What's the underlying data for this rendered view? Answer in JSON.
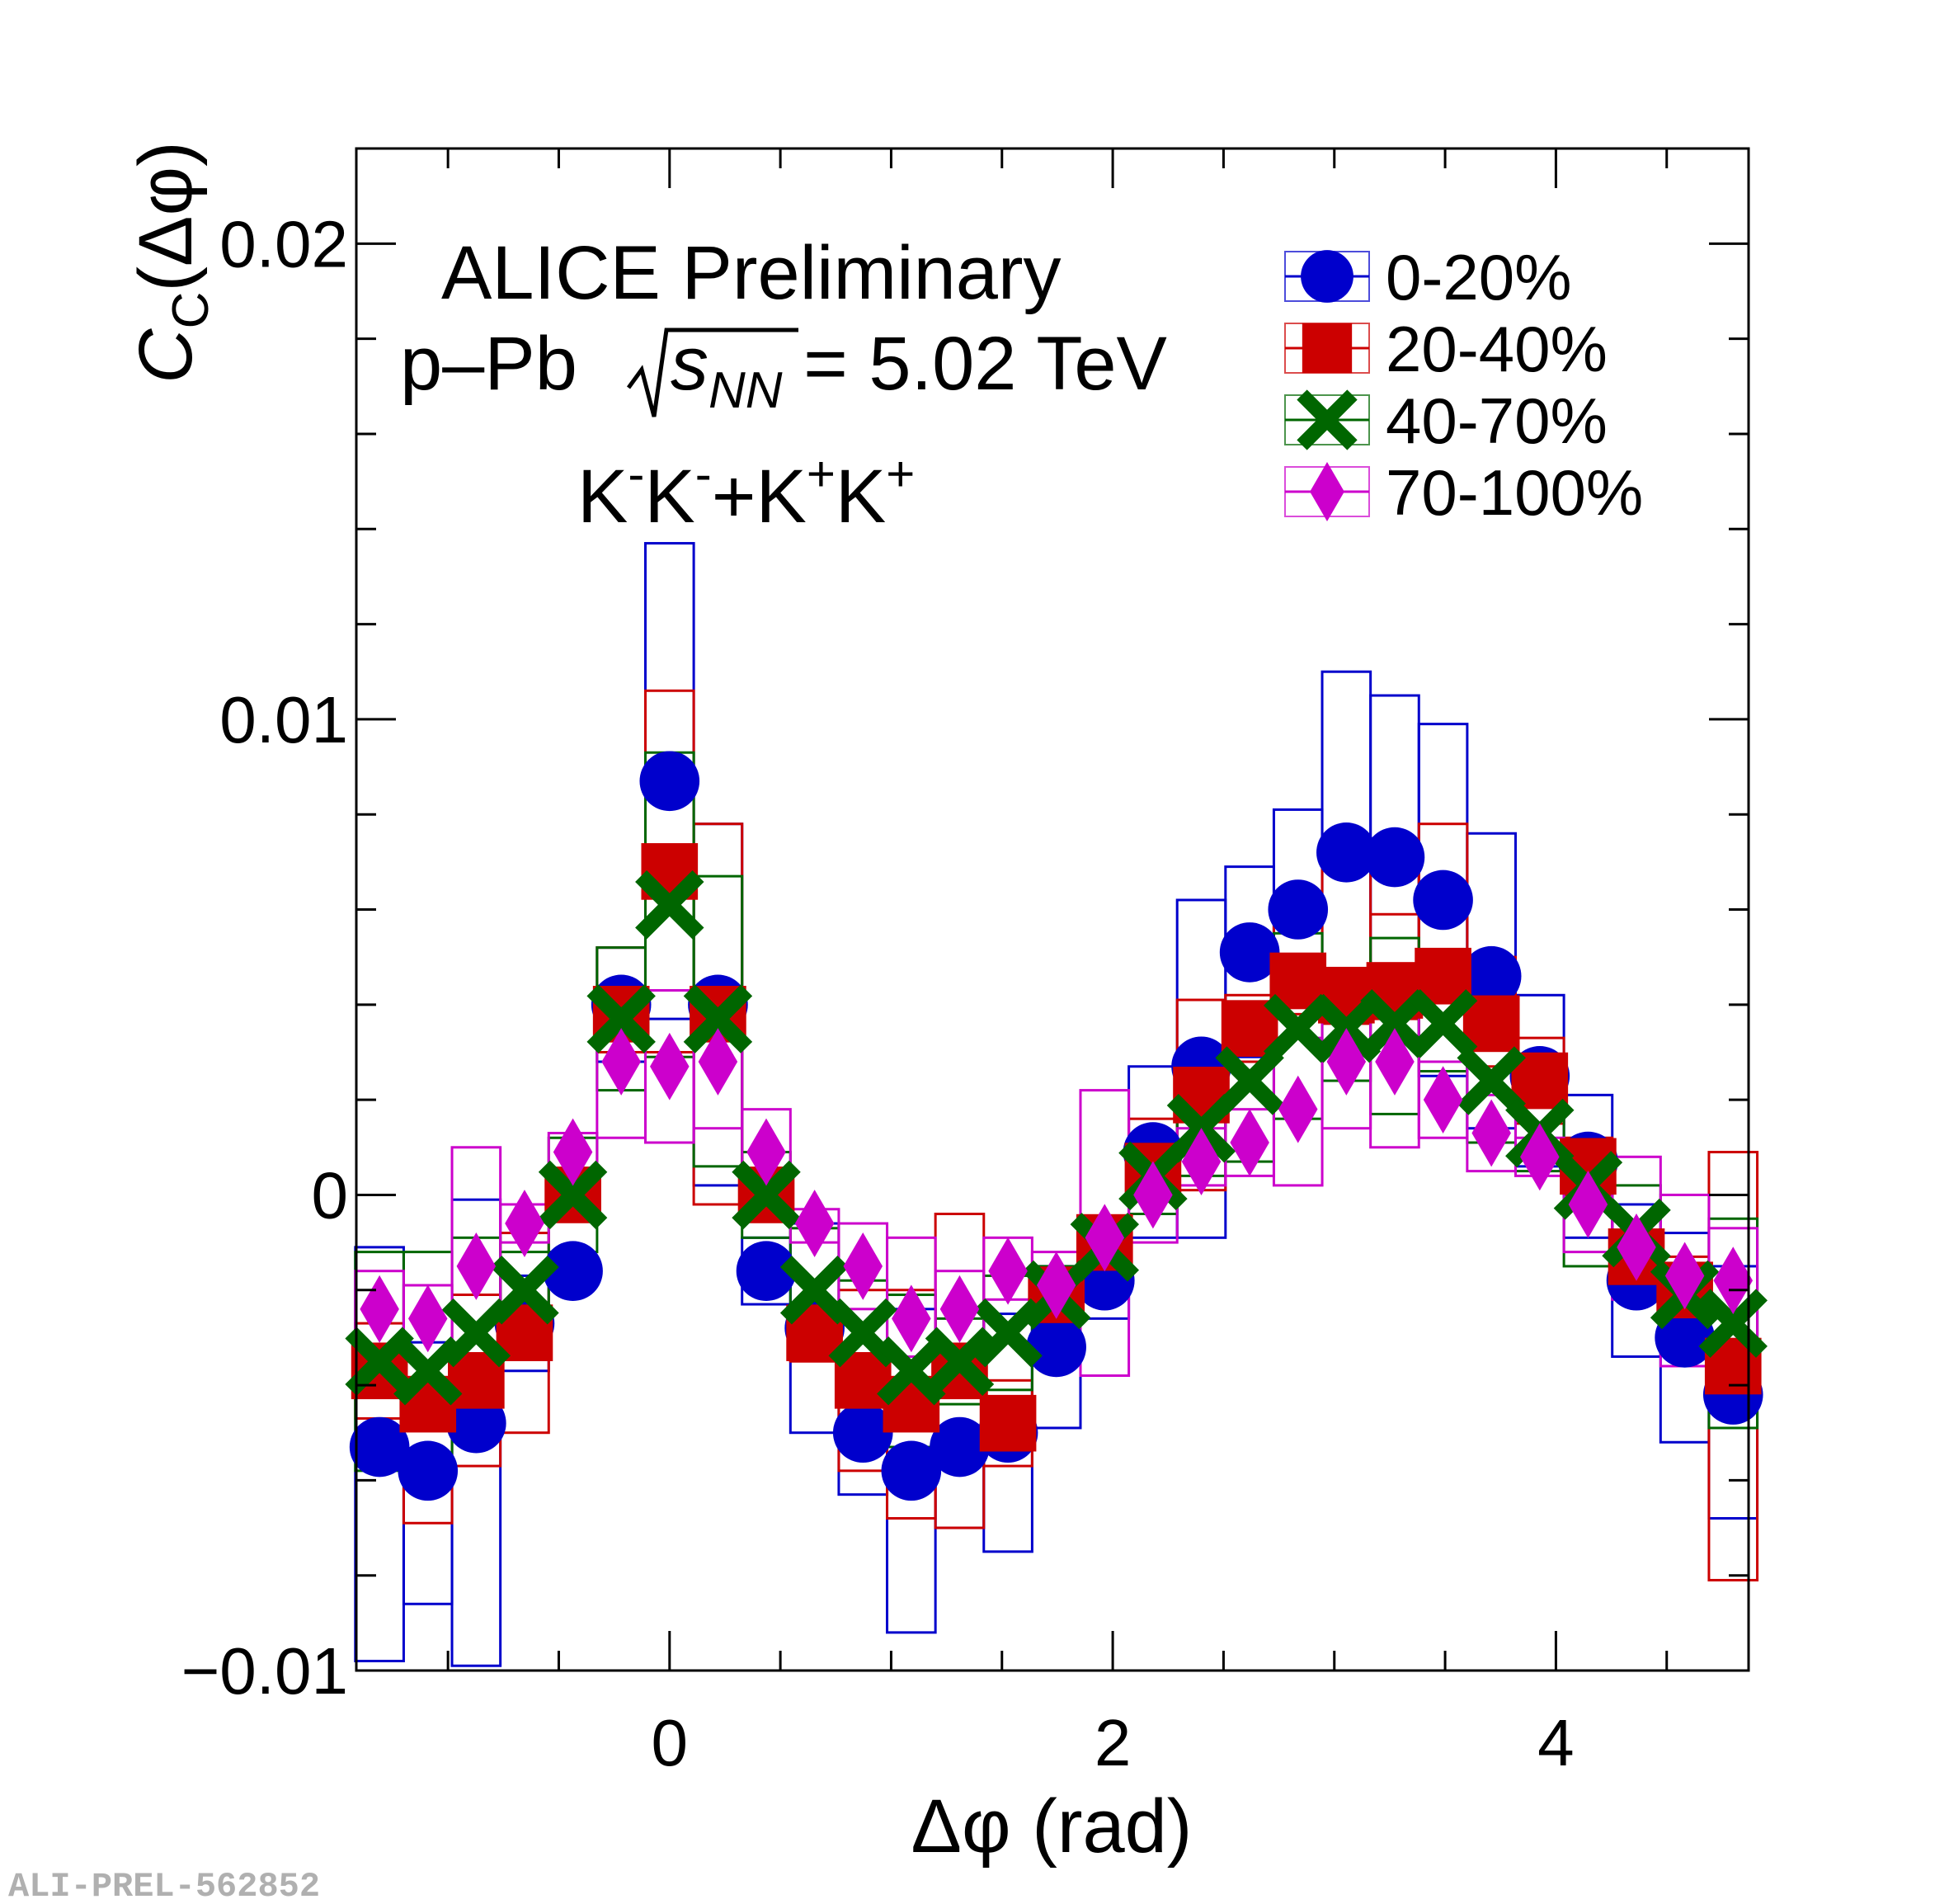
{
  "chart_data": {
    "type": "scatter",
    "title": "ALICE Preliminary",
    "subtitle": "p–Pb √sNN = 5.02 TeV",
    "system_label": {
      "base": "K",
      "sup1": "-",
      "mid": "K",
      "sup2": "-",
      "plus": "+K",
      "sup3": "+",
      "end": "K",
      "sup4": "+"
    },
    "energy_label": {
      "prefix": "p–Pb ",
      "s": "s",
      "sub": "NN",
      "suffix": " = 5.02 TeV"
    },
    "xlabel": "Δφ (rad)",
    "ylabel": {
      "main": "C",
      "sub": "C",
      "rest": "(Δφ)"
    },
    "xlim": [
      -1.4137,
      4.8695
    ],
    "ylim": [
      -0.01,
      0.022
    ],
    "x_ticks": [
      {
        "value": 0,
        "label": "0"
      },
      {
        "value": 2,
        "label": "2"
      },
      {
        "value": 4,
        "label": "4"
      }
    ],
    "y_ticks": [
      {
        "value": -0.01,
        "label": "−0.01"
      },
      {
        "value": 0,
        "label": "0"
      },
      {
        "value": 0.01,
        "label": "0.01"
      },
      {
        "value": 0.02,
        "label": "0.02"
      }
    ],
    "x": [
      -1.309,
      -1.0908,
      -0.8727,
      -0.6545,
      -0.4363,
      -0.2182,
      0.0,
      0.2182,
      0.4363,
      0.6545,
      0.8727,
      1.0908,
      1.309,
      1.5272,
      1.7453,
      1.9635,
      2.1817,
      2.3998,
      2.618,
      2.8362,
      3.0543,
      3.2725,
      3.4907,
      3.7088,
      3.927,
      4.1452,
      4.3633,
      4.5815,
      4.7997
    ],
    "bin_half_width": 0.1091,
    "legend_position": "top-right",
    "grid": false,
    "series": [
      {
        "name": "0-20%",
        "color": "#0000cc",
        "marker": "circle",
        "values": [
          -0.0053,
          -0.0058,
          -0.0048,
          -0.0027,
          -0.0016,
          0.004,
          0.0087,
          0.004,
          -0.0016,
          -0.0028,
          -0.005,
          -0.0058,
          -0.0053,
          -0.005,
          -0.0032,
          -0.0018,
          0.0009,
          0.0027,
          0.0051,
          0.006,
          0.0072,
          0.0071,
          0.0062,
          0.0046,
          0.0025,
          0.0007,
          -0.0018,
          -0.003,
          -0.0042
        ],
        "sys_low": [
          -0.0098,
          -0.0086,
          -0.0099,
          -0.0037,
          -0.0018,
          0.0028,
          0.0037,
          0.0002,
          -0.0023,
          -0.005,
          -0.0063,
          -0.0092,
          -0.007,
          -0.0075,
          -0.0049,
          -0.0026,
          -0.0009,
          -0.0009,
          0.0029,
          0.0037,
          0.004,
          0.0038,
          0.0025,
          0.0014,
          0.0006,
          -0.0009,
          -0.0034,
          -0.0052,
          -0.0068
        ],
        "sys_high": [
          -0.0011,
          -0.0031,
          -0.0001,
          -0.0017,
          -0.0014,
          0.0052,
          0.0137,
          0.0078,
          -0.0009,
          -0.0006,
          -0.0037,
          -0.0024,
          -0.0036,
          -0.0025,
          -0.0015,
          -0.001,
          0.0027,
          0.0062,
          0.0069,
          0.0081,
          0.011,
          0.0105,
          0.0099,
          0.0076,
          0.0042,
          0.0021,
          -0.0002,
          -0.0008,
          -0.0015
        ]
      },
      {
        "name": "20-40%",
        "color": "#cc0000",
        "marker": "square",
        "values": [
          -0.0037,
          -0.0044,
          -0.0039,
          -0.0029,
          0.0,
          0.0038,
          0.0068,
          0.0038,
          0.0,
          -0.0029,
          -0.0039,
          -0.0044,
          -0.0037,
          -0.0048,
          -0.0021,
          -0.001,
          0.0005,
          0.0021,
          0.0035,
          0.0045,
          0.0042,
          0.0043,
          0.0046,
          0.0036,
          0.0024,
          0.0006,
          -0.0013,
          -0.002,
          -0.0036
        ],
        "sys_low": [
          -0.0047,
          -0.0069,
          -0.0057,
          -0.005,
          -0.0004,
          0.003,
          0.003,
          -0.0002,
          -0.0004,
          -0.0035,
          -0.0058,
          -0.0068,
          -0.007,
          -0.0057,
          -0.0026,
          -0.0014,
          0.0,
          0.0001,
          0.0028,
          0.0038,
          0.0036,
          0.0037,
          0.0038,
          0.0027,
          0.0015,
          0.0,
          -0.0018,
          -0.0027,
          -0.0081
        ],
        "sys_high": [
          -0.0027,
          -0.0019,
          -0.0021,
          -0.0008,
          0.0004,
          0.0052,
          0.0106,
          0.0078,
          0.0004,
          -0.0023,
          -0.002,
          -0.002,
          -0.0004,
          -0.0039,
          -0.0016,
          -0.0006,
          0.0016,
          0.0041,
          0.0042,
          0.0059,
          0.0071,
          0.0059,
          0.0078,
          0.005,
          0.0033,
          0.0012,
          -0.0008,
          -0.0013,
          0.0009
        ]
      },
      {
        "name": "40-70%",
        "color": "#006600",
        "marker": "cross",
        "values": [
          -0.0035,
          -0.0037,
          -0.0029,
          -0.002,
          0.0,
          0.0037,
          0.0061,
          0.0037,
          0.0,
          -0.002,
          -0.0029,
          -0.0037,
          -0.0035,
          -0.0029,
          -0.0021,
          -0.0011,
          0.0004,
          0.0014,
          0.0024,
          0.0035,
          0.0035,
          0.0036,
          0.0036,
          0.0024,
          0.0013,
          0.0002,
          -0.0008,
          -0.0021,
          -0.0027
        ],
        "sys_low": [
          -0.0058,
          -0.0061,
          -0.0049,
          -0.0028,
          -0.0012,
          0.0022,
          0.0029,
          0.0006,
          -0.0009,
          -0.0033,
          -0.004,
          -0.0053,
          -0.0044,
          -0.0041,
          -0.0027,
          -0.0016,
          -0.0004,
          0.0004,
          0.0007,
          0.0016,
          0.0024,
          0.0017,
          0.0026,
          0.0011,
          0.0005,
          -0.0015,
          -0.0018,
          -0.0024,
          -0.0049
        ],
        "sys_high": [
          -0.0012,
          -0.0012,
          -0.0009,
          -0.0012,
          0.0012,
          0.0052,
          0.0093,
          0.0067,
          0.0009,
          -0.0007,
          -0.0018,
          -0.0021,
          -0.0026,
          -0.0017,
          -0.0015,
          -0.0006,
          0.0012,
          0.0024,
          0.004,
          0.0055,
          0.0046,
          0.0054,
          0.0046,
          0.0038,
          0.0021,
          0.0009,
          0.0002,
          -0.0018,
          -0.0005
        ]
      },
      {
        "name": "70-100%",
        "color": "#cc00cc",
        "marker": "diamond",
        "values": [
          -0.0024,
          -0.0026,
          -0.0015,
          -0.0006,
          0.0009,
          0.0028,
          0.0027,
          0.0028,
          0.0009,
          -0.0006,
          -0.0015,
          -0.0026,
          -0.0024,
          -0.0016,
          -0.0019,
          -0.0009,
          0.0,
          0.0007,
          0.0011,
          0.0018,
          0.0028,
          0.0028,
          0.002,
          0.0013,
          0.0008,
          -0.0002,
          -0.0011,
          -0.0017,
          -0.0018
        ],
        "sys_low": [
          -0.0032,
          -0.0035,
          -0.004,
          -0.001,
          0.0004,
          0.0012,
          0.0011,
          0.0014,
          0.0005,
          -0.001,
          -0.0024,
          -0.0034,
          -0.0032,
          -0.0022,
          -0.0025,
          -0.0038,
          -0.001,
          0.0002,
          0.0004,
          0.0002,
          0.0014,
          0.001,
          0.0012,
          0.0005,
          0.0004,
          -0.0012,
          -0.0022,
          -0.0036,
          -0.0032
        ],
        "sys_high": [
          -0.0016,
          -0.0019,
          0.001,
          -0.0002,
          0.0013,
          0.0043,
          0.0043,
          0.0042,
          0.0018,
          -0.0003,
          -0.0006,
          -0.0009,
          -0.0016,
          -0.0009,
          -0.0012,
          0.0022,
          0.0011,
          0.0014,
          0.0018,
          0.0033,
          0.0042,
          0.0047,
          0.0028,
          0.0021,
          0.0012,
          0.0008,
          0.0008,
          0.0,
          -0.0007
        ]
      }
    ]
  },
  "watermark": "ALI-PREL-562852"
}
